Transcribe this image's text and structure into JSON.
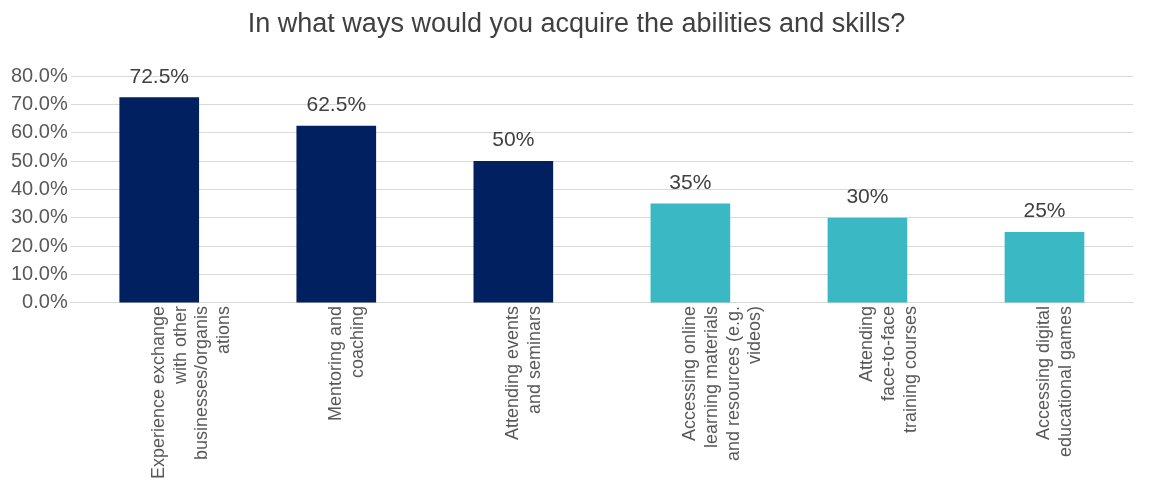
{
  "chart_data": {
    "type": "bar",
    "title": "In what ways would you acquire the abilities and skills?",
    "categories": [
      "Experience exchange with other businesses/organisations",
      "Mentoring and coaching",
      "Attending events and seminars",
      "Accessing online learning materials and resources (e.g. videos)",
      "Attending face-to-face training courses",
      "Accessing digital educational games"
    ],
    "values": [
      72.5,
      62.5,
      50,
      35,
      30,
      25
    ],
    "colors": [
      "#002060",
      "#002060",
      "#002060",
      "#3ab9c4",
      "#3ab9c4",
      "#3ab9c4"
    ],
    "value_labels": [
      "72.5%",
      "62.5%",
      "50%",
      "35%",
      "30%",
      "25%"
    ],
    "ylim": [
      0,
      80
    ],
    "yticks": [
      {
        "value": 0,
        "label": "0.0%"
      },
      {
        "value": 10,
        "label": "10.0%"
      },
      {
        "value": 20,
        "label": "20.0%"
      },
      {
        "value": 30,
        "label": "30.0%"
      },
      {
        "value": 40,
        "label": "40.0%"
      },
      {
        "value": 50,
        "label": "50.0%"
      },
      {
        "value": 60,
        "label": "60.0%"
      },
      {
        "value": 70,
        "label": "70.0%"
      },
      {
        "value": 80,
        "label": "80.0%"
      }
    ],
    "grid": "y",
    "legend": false
  }
}
